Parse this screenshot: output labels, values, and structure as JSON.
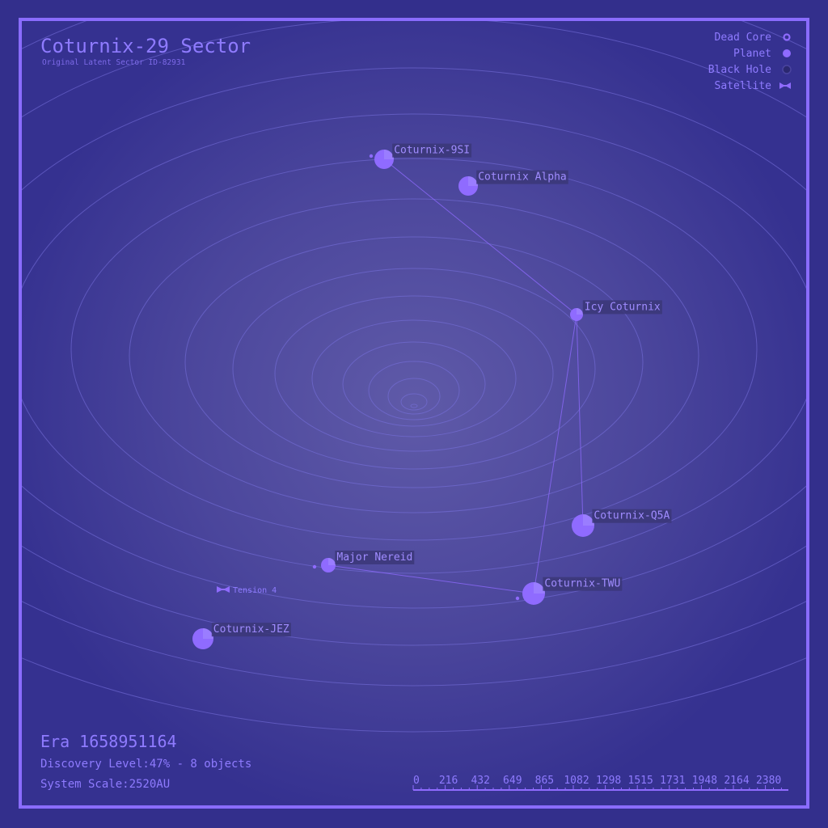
{
  "header": {
    "title": "Coturnix-29 Sector",
    "subtitle": "Original Latent Sector ID-82931"
  },
  "legend": [
    {
      "label": "Dead Core",
      "icon": "dead-core-icon"
    },
    {
      "label": "Planet",
      "icon": "planet-icon"
    },
    {
      "label": "Black Hole",
      "icon": "black-hole-icon"
    },
    {
      "label": "Satellite",
      "icon": "satellite-icon"
    }
  ],
  "objects": [
    {
      "id": "9si",
      "name": "Coturnix-9SI",
      "type": "planet"
    },
    {
      "id": "alpha",
      "name": "Coturnix Alpha",
      "type": "planet"
    },
    {
      "id": "icy",
      "name": "Icy Coturnix",
      "type": "planet"
    },
    {
      "id": "q5a",
      "name": "Coturnix-Q5A",
      "type": "planet"
    },
    {
      "id": "nereid",
      "name": "Major Nereid",
      "type": "planet"
    },
    {
      "id": "twu",
      "name": "Coturnix-TWU",
      "type": "planet"
    },
    {
      "id": "jez",
      "name": "Coturnix-JEZ",
      "type": "planet"
    },
    {
      "id": "tension",
      "name": "Tension 4",
      "type": "satellite"
    }
  ],
  "routes": [
    [
      "9si",
      "icy"
    ],
    [
      "icy",
      "q5a"
    ],
    [
      "icy",
      "twu"
    ],
    [
      "nereid",
      "twu"
    ]
  ],
  "footer": {
    "era": "Era 1658951164",
    "discovery": "Discovery Level:47% - 8 objects",
    "scale": "System Scale:2520AU"
  },
  "scale_bar": {
    "ticks": [
      "0",
      "216",
      "432",
      "649",
      "865",
      "1082",
      "1298",
      "1515",
      "1731",
      "1948",
      "2164",
      "2380"
    ]
  },
  "colors": {
    "background": "#332f8c",
    "accent": "#8f6bff",
    "text": "#8f7bff",
    "orbit": "#7a72e0",
    "label_bg": "#3f3b7a"
  }
}
